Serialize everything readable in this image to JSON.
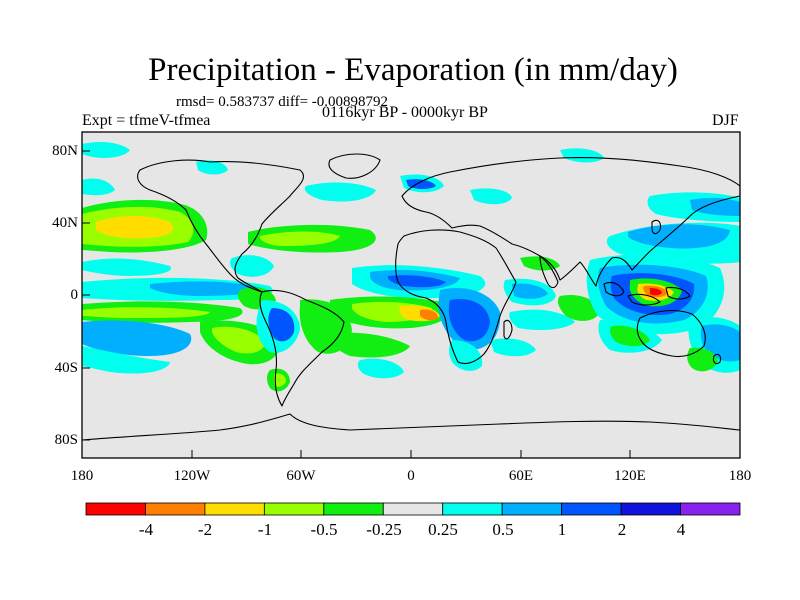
{
  "title": "Precipitation - Evaporation (in mm/day)",
  "stats": "rmsd= 0.583737 diff= -0.00898792",
  "experiment": "Expt = tfmeV-tfmea",
  "period": "0116kyr BP - 0000kyr BP",
  "season": "DJF",
  "map": {
    "lat_labels": [
      "80N",
      "40N",
      "0",
      "40S",
      "80S"
    ],
    "lon_labels": [
      "180",
      "120W",
      "60W",
      "0",
      "60E",
      "120E",
      "180"
    ],
    "background_color": "#e6e6e6",
    "coastline_color": "#000000"
  },
  "colorbar": {
    "labels": [
      "-4",
      "-2",
      "-1",
      "-0.5",
      "-0.25",
      "0.25",
      "0.5",
      "1",
      "2",
      "4"
    ],
    "colors": [
      "#ff0000",
      "#ff8000",
      "#ffdd00",
      "#99ff00",
      "#11ee11",
      "#e6e6e6",
      "#00ffee",
      "#00b0ff",
      "#0055ff",
      "#1111dd",
      "#8822ee"
    ]
  }
}
